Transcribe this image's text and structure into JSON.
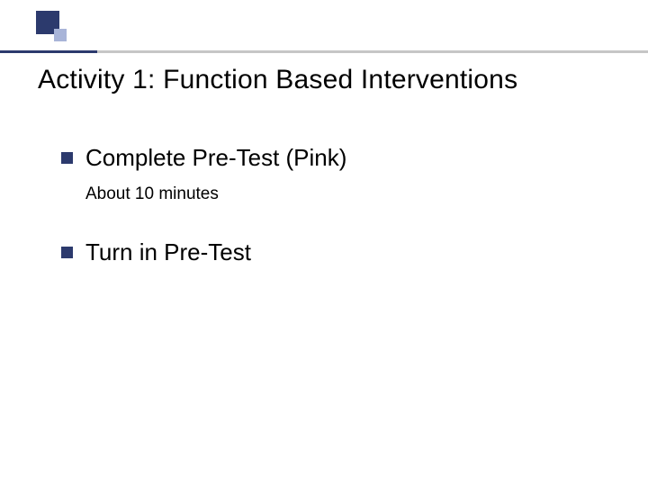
{
  "colors": {
    "accent_dark": "#2c3a6d",
    "accent_light": "#a8b4d8",
    "line_light": "#c6c6c6",
    "text": "#000000",
    "background": "#ffffff"
  },
  "title": "Activity 1: Function Based Interventions",
  "bullets": [
    {
      "text": "Complete Pre-Test  (Pink)",
      "sub": "About 10 minutes"
    },
    {
      "text": "Turn in Pre-Test",
      "sub": null
    }
  ],
  "layout": {
    "square_large_size": 26,
    "square_small_size": 14,
    "title_fontsize": 30,
    "bullet_fontsize": 26,
    "sub_fontsize": 19,
    "bullet_square_size": 13
  }
}
